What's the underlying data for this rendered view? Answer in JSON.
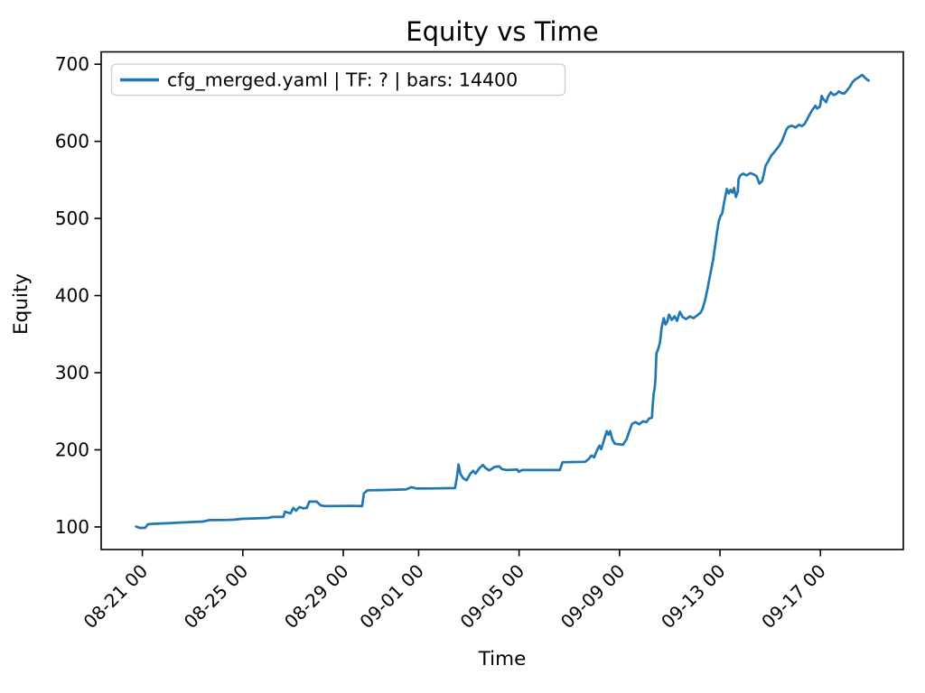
{
  "chart_data": {
    "type": "line",
    "title": "Equity vs Time",
    "xlabel": "Time",
    "ylabel": "Equity",
    "grid": false,
    "legend": {
      "position": "upper left",
      "entries": [
        {
          "label": "cfg_merged.yaml | TF: ? | bars: 14400",
          "color": "#1f77b4"
        }
      ]
    },
    "x_axis": {
      "unit": "days since 08-21 00:00",
      "tick_labels": [
        "08-21 00",
        "08-25 00",
        "08-29 00",
        "09-01 00",
        "09-05 00",
        "09-09 00",
        "09-13 00",
        "09-17 00"
      ],
      "tick_day_offsets": [
        0,
        4,
        8,
        11,
        15,
        19,
        23,
        27
      ],
      "domain_days": [
        -1.64,
        30.3
      ]
    },
    "y_axis": {
      "ticks": [
        100,
        200,
        300,
        400,
        500,
        600,
        700
      ],
      "domain": [
        70.7,
        716
      ]
    },
    "series": [
      {
        "name": "cfg_merged.yaml | TF: ? | bars: 14400",
        "color": "#1f77b4",
        "line_width": 2.7,
        "points": [
          [
            -0.25,
            100.5
          ],
          [
            -0.11,
            98.8
          ],
          [
            0.11,
            98.8
          ],
          [
            0.22,
            103.5
          ],
          [
            0.43,
            104.1
          ],
          [
            1.0,
            104.8
          ],
          [
            1.69,
            105.9
          ],
          [
            2.41,
            107.0
          ],
          [
            2.66,
            108.8
          ],
          [
            3.3,
            109.0
          ],
          [
            3.67,
            109.4
          ],
          [
            3.96,
            110.5
          ],
          [
            5.0,
            111.7
          ],
          [
            5.18,
            112.9
          ],
          [
            5.61,
            112.9
          ],
          [
            5.68,
            119.9
          ],
          [
            5.79,
            118.5
          ],
          [
            5.9,
            117.6
          ],
          [
            6.01,
            124.6
          ],
          [
            6.12,
            121.1
          ],
          [
            6.26,
            125.8
          ],
          [
            6.4,
            124.0
          ],
          [
            6.55,
            124.6
          ],
          [
            6.65,
            132.8
          ],
          [
            6.94,
            133.0
          ],
          [
            7.09,
            128.1
          ],
          [
            7.27,
            127.0
          ],
          [
            8.4,
            127.3
          ],
          [
            8.75,
            127.0
          ],
          [
            8.82,
            143.4
          ],
          [
            8.96,
            147.5
          ],
          [
            9.5,
            147.8
          ],
          [
            10.5,
            148.6
          ],
          [
            10.72,
            151.6
          ],
          [
            10.93,
            149.8
          ],
          [
            11.5,
            149.9
          ],
          [
            12.45,
            150.4
          ],
          [
            12.52,
            163.3
          ],
          [
            12.59,
            181.0
          ],
          [
            12.66,
            169.1
          ],
          [
            12.77,
            163.3
          ],
          [
            12.91,
            160.4
          ],
          [
            13.06,
            169.1
          ],
          [
            13.17,
            172.7
          ],
          [
            13.27,
            169.1
          ],
          [
            13.42,
            176.2
          ],
          [
            13.56,
            180.3
          ],
          [
            13.67,
            176.2
          ],
          [
            13.81,
            173.2
          ],
          [
            14.03,
            177.9
          ],
          [
            14.21,
            178.5
          ],
          [
            14.32,
            175.0
          ],
          [
            14.53,
            173.8
          ],
          [
            14.93,
            174.4
          ],
          [
            14.99,
            171.5
          ],
          [
            15.11,
            173.8
          ],
          [
            16.0,
            173.8
          ],
          [
            16.62,
            173.8
          ],
          [
            16.73,
            183.8
          ],
          [
            17.63,
            184.4
          ],
          [
            17.77,
            187.9
          ],
          [
            17.88,
            192.6
          ],
          [
            17.99,
            190.2
          ],
          [
            18.09,
            198.4
          ],
          [
            18.2,
            205.5
          ],
          [
            18.27,
            200.8
          ],
          [
            18.38,
            212.5
          ],
          [
            18.49,
            224.2
          ],
          [
            18.56,
            219.5
          ],
          [
            18.63,
            224.2
          ],
          [
            18.71,
            213.7
          ],
          [
            18.81,
            207.8
          ],
          [
            19.14,
            206.6
          ],
          [
            19.28,
            213.7
          ],
          [
            19.39,
            224.2
          ],
          [
            19.5,
            233.6
          ],
          [
            19.64,
            235.9
          ],
          [
            19.78,
            233.0
          ],
          [
            19.93,
            237.1
          ],
          [
            20.07,
            235.9
          ],
          [
            20.18,
            240.6
          ],
          [
            20.29,
            241.8
          ],
          [
            20.32,
            257.0
          ],
          [
            20.36,
            272.3
          ],
          [
            20.4,
            280.5
          ],
          [
            20.43,
            292.2
          ],
          [
            20.47,
            325.0
          ],
          [
            20.54,
            330.9
          ],
          [
            20.61,
            339.1
          ],
          [
            20.68,
            359.0
          ],
          [
            20.76,
            370.7
          ],
          [
            20.83,
            362.5
          ],
          [
            20.9,
            366.0
          ],
          [
            20.97,
            375.4
          ],
          [
            21.08,
            368.4
          ],
          [
            21.19,
            373.1
          ],
          [
            21.29,
            367.2
          ],
          [
            21.4,
            378.9
          ],
          [
            21.51,
            372.5
          ],
          [
            21.65,
            369.5
          ],
          [
            21.8,
            373.1
          ],
          [
            21.94,
            370.7
          ],
          [
            22.09,
            374.2
          ],
          [
            22.23,
            377.8
          ],
          [
            22.3,
            382.4
          ],
          [
            22.41,
            394.2
          ],
          [
            22.52,
            411.7
          ],
          [
            22.63,
            430.5
          ],
          [
            22.73,
            446.9
          ],
          [
            22.81,
            465.6
          ],
          [
            22.88,
            482.0
          ],
          [
            22.95,
            496.1
          ],
          [
            23.02,
            503.1
          ],
          [
            23.09,
            506.6
          ],
          [
            23.13,
            514.8
          ],
          [
            23.2,
            526.6
          ],
          [
            23.27,
            538.3
          ],
          [
            23.35,
            532.4
          ],
          [
            23.42,
            537.1
          ],
          [
            23.49,
            533.6
          ],
          [
            23.56,
            539.4
          ],
          [
            23.63,
            527.7
          ],
          [
            23.71,
            534.7
          ],
          [
            23.74,
            551.1
          ],
          [
            23.81,
            555.8
          ],
          [
            23.92,
            558.2
          ],
          [
            24.06,
            555.8
          ],
          [
            24.21,
            558.7
          ],
          [
            24.35,
            557.0
          ],
          [
            24.46,
            554.6
          ],
          [
            24.57,
            545.2
          ],
          [
            24.68,
            548.8
          ],
          [
            24.75,
            558.2
          ],
          [
            24.82,
            568.7
          ],
          [
            24.93,
            574.6
          ],
          [
            25.04,
            581.6
          ],
          [
            25.14,
            585.1
          ],
          [
            25.25,
            589.8
          ],
          [
            25.36,
            594.5
          ],
          [
            25.47,
            600.4
          ],
          [
            25.58,
            609.7
          ],
          [
            25.65,
            615.6
          ],
          [
            25.72,
            618.5
          ],
          [
            25.86,
            620.3
          ],
          [
            26.01,
            617.9
          ],
          [
            26.15,
            621.4
          ],
          [
            26.26,
            619.7
          ],
          [
            26.37,
            622.6
          ],
          [
            26.47,
            628.5
          ],
          [
            26.58,
            635.5
          ],
          [
            26.69,
            641.4
          ],
          [
            26.8,
            646.1
          ],
          [
            26.87,
            642.5
          ],
          [
            26.98,
            644.9
          ],
          [
            27.05,
            659.0
          ],
          [
            27.12,
            654.3
          ],
          [
            27.23,
            650.8
          ],
          [
            27.3,
            657.8
          ],
          [
            27.41,
            663.7
          ],
          [
            27.52,
            660.1
          ],
          [
            27.63,
            661.3
          ],
          [
            27.73,
            664.8
          ],
          [
            27.84,
            662.5
          ],
          [
            27.95,
            661.9
          ],
          [
            28.06,
            666.0
          ],
          [
            28.17,
            670.7
          ],
          [
            28.27,
            676.6
          ],
          [
            28.38,
            680.1
          ],
          [
            28.49,
            682.4
          ],
          [
            28.6,
            684.8
          ],
          [
            28.67,
            686.0
          ],
          [
            28.74,
            683.6
          ],
          [
            28.85,
            680.1
          ],
          [
            28.92,
            678.9
          ]
        ]
      }
    ],
    "colors": {
      "line": "#1f77b4",
      "frame": "#000000",
      "legend_edge": "#cccccc",
      "background": "#ffffff"
    }
  }
}
